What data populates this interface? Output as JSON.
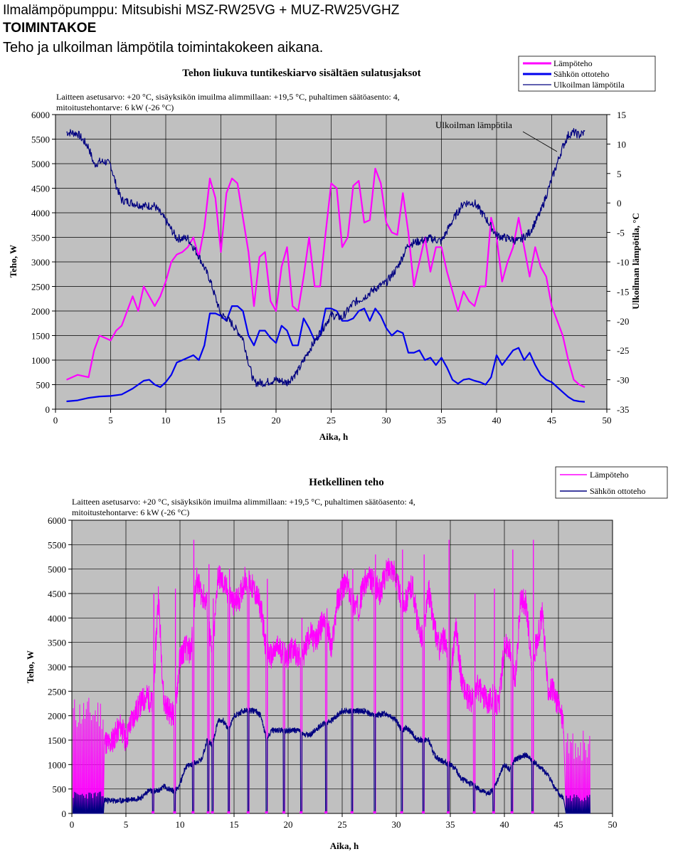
{
  "header": {
    "line1": "Ilmalämpöpumppu: Mitsubishi MSZ-RW25VG + MUZ-RW25VGHZ",
    "line2": "TOIMINTAKOE",
    "line3": "Teho ja ulkoilman lämpötila toimintakokeen aikana."
  },
  "colors": {
    "plot_bg": "#c0c0c0",
    "heat": "#ff00ff",
    "elec": "#0000ee",
    "temp": "#000080",
    "elec_inst": "#000080"
  },
  "chart_data": [
    {
      "type": "line",
      "title": "Tehon liukuva tuntikeskiarvo sisältäen sulatusjaksot",
      "subtitle_line1": "Laitteen asetusarvo: +20 °C, sisäyksikön imuilma alimmillaan: +19,5 °C, puhaltimen säätöasento: 4,",
      "subtitle_line2": "mitoitustehontarve: 6 kW (-26 °C)",
      "xlabel": "Aika, h",
      "ylabel": "Teho, W",
      "y2label": "Ulkoilman lämpötila, °C",
      "xlim": [
        0,
        50
      ],
      "ylim": [
        0,
        6000
      ],
      "y2lim": [
        -35,
        15
      ],
      "xticks": [
        "0",
        "5",
        "10",
        "15",
        "20",
        "25",
        "30",
        "35",
        "40",
        "45",
        "50"
      ],
      "yticks": [
        "0",
        "500",
        "1000",
        "1500",
        "2000",
        "2500",
        "3000",
        "3500",
        "4000",
        "4500",
        "5000",
        "5500",
        "6000"
      ],
      "y2ticks": [
        "-35",
        "-30",
        "-25",
        "-20",
        "-15",
        "-10",
        "-5",
        "0",
        "5",
        "10",
        "15"
      ],
      "annotation": "Ulkoilman lämpötila",
      "legend": [
        "Lämpöteho",
        "Sähkön ottoteho",
        "Ulkoilman lämpötila"
      ],
      "series": [
        {
          "name": "Lämpöteho",
          "x": [
            1.0,
            2.0,
            3.0,
            3.5,
            4.0,
            4.5,
            5.0,
            5.5,
            6.0,
            7.0,
            7.5,
            8.0,
            8.5,
            9.0,
            9.5,
            10.0,
            10.5,
            11.0,
            11.5,
            12.0,
            12.5,
            13.0,
            13.5,
            14.0,
            14.5,
            15.0,
            15.5,
            16.0,
            16.5,
            17.0,
            17.5,
            18.0,
            18.5,
            19.0,
            19.5,
            20.0,
            20.5,
            21.0,
            21.5,
            22.0,
            22.5,
            23.0,
            23.5,
            24.0,
            24.5,
            25.0,
            25.5,
            26.0,
            26.5,
            27.0,
            27.5,
            28.0,
            28.5,
            29.0,
            29.5,
            30.0,
            30.5,
            31.0,
            31.5,
            32.0,
            32.5,
            33.0,
            33.5,
            34.0,
            34.5,
            35.0,
            35.5,
            36.0,
            36.5,
            37.0,
            37.5,
            38.0,
            38.5,
            39.0,
            39.5,
            40.0,
            40.5,
            41.0,
            41.5,
            42.0,
            42.5,
            43.0,
            43.5,
            44.0,
            44.5,
            45.0,
            45.5,
            46.0,
            46.5,
            47.0,
            47.5,
            48.0
          ],
          "values": [
            600,
            700,
            650,
            1200,
            1500,
            1450,
            1400,
            1600,
            1700,
            2300,
            2000,
            2500,
            2300,
            2100,
            2300,
            2600,
            3000,
            3150,
            3200,
            3300,
            3500,
            3100,
            3700,
            4700,
            4300,
            3200,
            4400,
            4700,
            4600,
            3900,
            3200,
            2100,
            3100,
            3200,
            2200,
            2000,
            2900,
            3300,
            2100,
            2000,
            2700,
            3500,
            2500,
            2500,
            3600,
            4600,
            4500,
            3300,
            3500,
            4550,
            4650,
            3800,
            3850,
            4900,
            4600,
            3800,
            3600,
            3550,
            4400,
            3600,
            2500,
            3000,
            3500,
            2800,
            3300,
            3300,
            2800,
            2400,
            2000,
            2400,
            2200,
            2100,
            2500,
            2500,
            3900,
            3500,
            2600,
            3000,
            3300,
            3900,
            3300,
            2700,
            3300,
            2900,
            2700,
            2100,
            1800,
            1500,
            1000,
            600,
            500,
            450
          ]
        },
        {
          "name": "Sähkön ottoteho",
          "x": [
            1.0,
            2.0,
            3.0,
            4.0,
            5.0,
            6.0,
            7.0,
            7.5,
            8.0,
            8.5,
            9.0,
            9.5,
            10.0,
            10.5,
            11.0,
            11.5,
            12.0,
            12.5,
            13.0,
            13.5,
            14.0,
            14.5,
            15.0,
            15.5,
            16.0,
            16.5,
            17.0,
            17.5,
            18.0,
            18.5,
            19.0,
            19.5,
            20.0,
            20.5,
            21.0,
            21.5,
            22.0,
            22.5,
            23.0,
            23.5,
            24.0,
            24.5,
            25.0,
            25.5,
            26.0,
            26.5,
            27.0,
            27.5,
            28.0,
            28.5,
            29.0,
            29.5,
            30.0,
            30.5,
            31.0,
            31.5,
            32.0,
            32.5,
            33.0,
            33.5,
            34.0,
            34.5,
            35.0,
            35.5,
            36.0,
            36.5,
            37.0,
            37.5,
            38.0,
            38.5,
            39.0,
            39.5,
            40.0,
            40.5,
            41.0,
            41.5,
            42.0,
            42.5,
            43.0,
            43.5,
            44.0,
            44.5,
            45.0,
            45.5,
            46.0,
            46.5,
            47.0,
            47.5,
            48.0
          ],
          "values": [
            160,
            180,
            230,
            260,
            270,
            300,
            420,
            500,
            580,
            600,
            500,
            450,
            550,
            700,
            950,
            1000,
            1050,
            1100,
            1000,
            1300,
            1950,
            1950,
            1900,
            1800,
            2100,
            2100,
            2000,
            1500,
            1300,
            1600,
            1600,
            1450,
            1350,
            1700,
            1600,
            1300,
            1300,
            1850,
            1650,
            1400,
            1500,
            2050,
            2050,
            2000,
            1800,
            1800,
            1850,
            2000,
            2050,
            1800,
            2050,
            1900,
            1650,
            1500,
            1600,
            1550,
            1150,
            1150,
            1200,
            1000,
            1050,
            900,
            1050,
            850,
            600,
            520,
            600,
            620,
            580,
            550,
            500,
            650,
            1100,
            900,
            1050,
            1200,
            1250,
            1000,
            1150,
            900,
            700,
            600,
            550,
            450,
            350,
            250,
            180,
            160,
            150
          ]
        },
        {
          "name": "Ulkoilman lämpötila",
          "x": [
            1.0,
            2.0,
            3.0,
            3.5,
            4.0,
            4.5,
            5.0,
            5.5,
            6.0,
            7.0,
            8.0,
            9.0,
            10.0,
            11.0,
            12.0,
            12.5,
            13.0,
            14.0,
            15.0,
            15.5,
            16.0,
            17.0,
            17.5,
            18.0,
            18.5,
            19.0,
            20.0,
            21.0,
            22.0,
            23.0,
            24.0,
            25.0,
            26.0,
            27.0,
            28.0,
            29.0,
            30.0,
            31.0,
            32.0,
            33.0,
            34.0,
            35.0,
            36.0,
            37.0,
            38.0,
            39.0,
            40.0,
            41.0,
            42.0,
            43.0,
            44.0,
            45.0,
            46.0,
            46.5,
            47.0,
            47.5,
            48.0
          ],
          "values": [
            12.0,
            11.8,
            9.5,
            6.5,
            7.0,
            7.0,
            6.5,
            3.0,
            0.5,
            0.0,
            -0.5,
            -0.5,
            -3.0,
            -6.0,
            -6.0,
            -7.5,
            -9.0,
            -13.0,
            -19.0,
            -19.5,
            -20.5,
            -23.0,
            -27.0,
            -30.5,
            -30.5,
            -30.5,
            -30.0,
            -30.5,
            -28.5,
            -25.0,
            -22.0,
            -19.0,
            -19.5,
            -17.0,
            -16.0,
            -14.5,
            -13.5,
            -11.0,
            -7.0,
            -6.5,
            -6.0,
            -6.5,
            -3.0,
            0.0,
            0.0,
            -2.5,
            -5.5,
            -6.0,
            -6.5,
            -5.0,
            -1.5,
            4.0,
            9.5,
            11.5,
            12.0,
            11.5,
            12.0
          ]
        }
      ]
    },
    {
      "type": "line",
      "title": "Hetkellinen teho",
      "subtitle_line1": "Laitteen asetusarvo: +20 °C, sisäyksikön imuilma alimmillaan: +19,5 °C, puhaltimen säätöasento: 4,",
      "subtitle_line2": "mitoitustehontarve: 6 kW (-26 °C)",
      "xlabel": "Aika, h",
      "ylabel": "Teho, W",
      "xlim": [
        0,
        50
      ],
      "ylim": [
        0,
        6000
      ],
      "xticks": [
        "0",
        "5",
        "10",
        "15",
        "20",
        "25",
        "30",
        "35",
        "40",
        "45",
        "50"
      ],
      "yticks": [
        "0",
        "500",
        "1000",
        "1500",
        "2000",
        "2500",
        "3000",
        "3500",
        "4000",
        "4500",
        "5000",
        "5500",
        "6000"
      ],
      "legend": [
        "Lämpöteho",
        "Sähkön ottoteho"
      ],
      "defrost_times": [
        7.5,
        9.5,
        11.2,
        12.6,
        13.0,
        14.5,
        16.3,
        18.0,
        19.6,
        21.2,
        23.5,
        25.9,
        28.0,
        30.5,
        32.5,
        34.8,
        37.2,
        39.0,
        40.7,
        42.6
      ],
      "series": [
        {
          "name": "Lämpöteho",
          "x": [
            3.0,
            3.5,
            4.0,
            4.5,
            5.0,
            5.5,
            6.0,
            6.5,
            7.0,
            7.5,
            8.0,
            8.5,
            9.0,
            9.5,
            10.0,
            10.5,
            11.0,
            11.5,
            12.0,
            12.5,
            13.0,
            13.5,
            14.0,
            14.5,
            15.0,
            15.5,
            16.0,
            16.5,
            17.0,
            17.5,
            18.0,
            18.5,
            19.0,
            19.5,
            20.0,
            20.5,
            21.0,
            21.5,
            22.0,
            22.5,
            23.0,
            23.5,
            24.0,
            24.5,
            25.0,
            25.5,
            26.0,
            26.5,
            27.0,
            27.5,
            28.0,
            28.5,
            29.0,
            29.5,
            30.0,
            30.5,
            31.0,
            31.5,
            32.0,
            32.5,
            33.0,
            33.5,
            34.0,
            34.5,
            35.0,
            35.5,
            36.0,
            36.5,
            37.0,
            37.5,
            38.0,
            38.5,
            39.0,
            39.5,
            40.0,
            40.5,
            41.0,
            41.5,
            42.0,
            42.5,
            43.0,
            43.5,
            44.0,
            44.5,
            45.0,
            45.5
          ],
          "values": [
            1500,
            1400,
            1600,
            1800,
            1500,
            1900,
            2100,
            2300,
            2400,
            2200,
            4500,
            2300,
            2100,
            2000,
            3200,
            3400,
            3300,
            4800,
            4500,
            4300,
            3100,
            4900,
            4700,
            4500,
            4300,
            4400,
            4800,
            4700,
            4500,
            4200,
            3300,
            3200,
            3400,
            3300,
            3200,
            3400,
            3200,
            3300,
            3700,
            3500,
            3800,
            4100,
            3300,
            4300,
            4600,
            4700,
            4300,
            4200,
            4700,
            4800,
            4700,
            4500,
            4900,
            5100,
            4800,
            4300,
            4400,
            4700,
            3800,
            3600,
            4600,
            3800,
            3400,
            3600,
            2700,
            3900,
            2800,
            2400,
            2300,
            2600,
            2400,
            2300,
            2400,
            2200,
            3500,
            3300,
            2700,
            4400,
            4300,
            3100,
            3500,
            4100,
            2600,
            2500,
            2200,
            1900
          ]
        },
        {
          "name": "Sähkön ottoteho",
          "x": [
            3.0,
            4.0,
            5.0,
            6.0,
            6.5,
            7.0,
            8.0,
            8.5,
            9.0,
            9.5,
            10.0,
            10.5,
            11.0,
            11.5,
            12.0,
            12.5,
            13.0,
            13.5,
            14.0,
            14.5,
            15.0,
            16.0,
            17.0,
            17.5,
            18.0,
            18.5,
            19.0,
            20.0,
            21.0,
            21.5,
            22.0,
            23.0,
            24.0,
            25.0,
            26.0,
            27.0,
            28.0,
            29.0,
            29.5,
            30.0,
            30.5,
            31.0,
            32.0,
            33.0,
            33.5,
            34.0,
            35.0,
            35.5,
            36.0,
            37.0,
            38.0,
            38.5,
            39.0,
            40.0,
            40.5,
            41.0,
            42.0,
            42.5,
            43.0,
            44.0,
            45.0,
            45.5
          ],
          "values": [
            280,
            250,
            270,
            310,
            330,
            460,
            460,
            560,
            500,
            450,
            600,
            950,
            1000,
            1050,
            1100,
            1500,
            1400,
            1900,
            1900,
            1700,
            2000,
            2100,
            2100,
            2000,
            1500,
            1700,
            1700,
            1700,
            1700,
            1600,
            1600,
            1800,
            1900,
            2100,
            2100,
            2100,
            2000,
            2050,
            2000,
            1900,
            1700,
            1750,
            1500,
            1500,
            1200,
            1100,
            1000,
            900,
            700,
            600,
            450,
            400,
            500,
            1000,
            900,
            1100,
            1200,
            1100,
            1000,
            800,
            400,
            300
          ]
        }
      ]
    }
  ]
}
